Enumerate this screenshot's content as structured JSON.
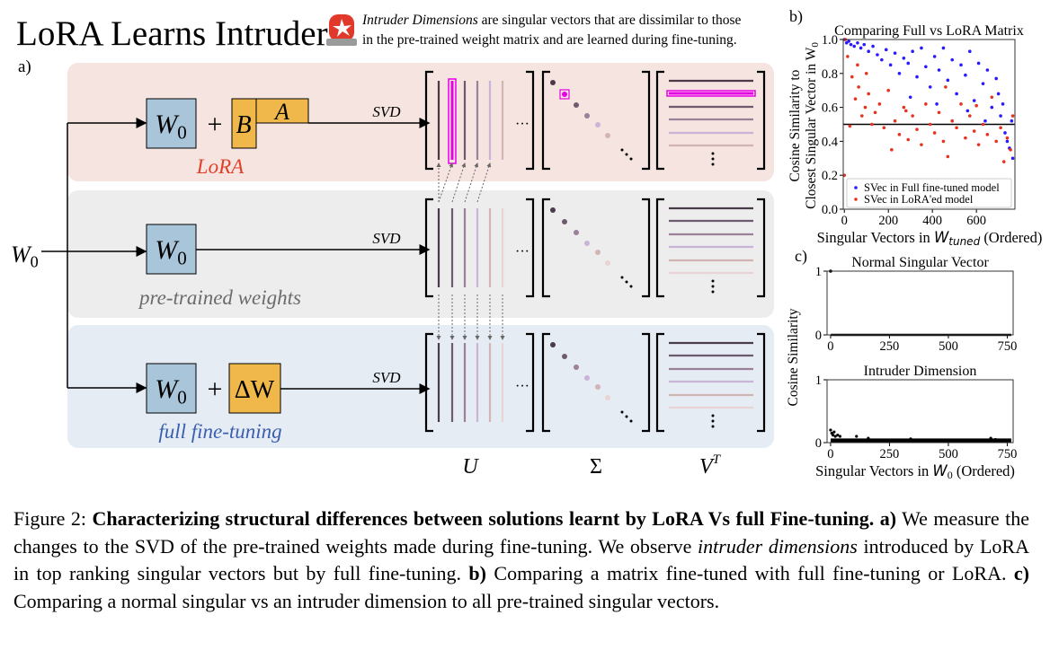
{
  "header": {
    "title": "LoRA Learns Intruders",
    "icon": "alarm-siren-icon",
    "note_italic": "Intruder Dimensions",
    "note_line1_rest": " are singular vectors that are dissimilar to those",
    "note_line2": "in the pre-trained weight matrix and are learned during fine-tuning."
  },
  "panel_a": {
    "label": "a)",
    "input_label": "W",
    "input_sub": "0",
    "rows": [
      {
        "name": "LoRA",
        "caption": "LoRA",
        "bg": "#f5e4e0",
        "caption_color": "#e0402a",
        "terms": [
          "B",
          "A"
        ],
        "svd": "SVD"
      },
      {
        "name": "pre-trained weights",
        "caption": "pre-trained weights",
        "bg": "#ededed",
        "caption_color": "#6b6b6b",
        "terms": [],
        "svd": "SVD"
      },
      {
        "name": "full fine-tuning",
        "caption": "full fine-tuning",
        "bg": "#e6ecf4",
        "caption_color": "#3a5fb0",
        "terms": [
          "ΔW"
        ],
        "svd": "SVD"
      }
    ],
    "w0_label": "W",
    "w0_sub": "0",
    "plus": "+",
    "matrix_labels": {
      "u": "U",
      "sigma": "Σ",
      "v": "V",
      "v_sup": "T"
    },
    "colors": {
      "w0_box": "#a9c5d9",
      "update_box": "#f0b84a",
      "intruder": "#e600e6",
      "shades": [
        "#4a3a4a",
        "#6e5a6e",
        "#9a8099",
        "#c9b3d6",
        "#d2b4b4",
        "#e8d4d4"
      ]
    }
  },
  "chart_data": [
    {
      "panel": "b)",
      "type": "scatter",
      "title": "Comparing Full vs LoRA Matrix",
      "ylabel_line1": "Cosine Similarity to",
      "ylabel_line2": "Closest Singular Vector in W",
      "ylabel_sub": "0",
      "xlabel_pre": "Singular Vectors in ",
      "xlabel_var": "W",
      "xlabel_sub": "tuned",
      "xlabel_post": " (Ordered)",
      "xlim": [
        -5,
        775
      ],
      "ylim": [
        0.0,
        1.0
      ],
      "xticks": [
        "0",
        "200",
        "400",
        "600"
      ],
      "yticks": [
        "0.0",
        "0.2",
        "0.4",
        "0.6",
        "0.8",
        "1.0"
      ],
      "hline": 0.5,
      "legend_position": "lower-left",
      "series": [
        {
          "name": "SVec in Full fine-tuned model",
          "color": "#2a1aff",
          "points": [
            [
              0,
              1.0
            ],
            [
              10,
              0.98
            ],
            [
              20,
              0.99
            ],
            [
              30,
              0.97
            ],
            [
              45,
              0.96
            ],
            [
              60,
              0.98
            ],
            [
              75,
              0.95
            ],
            [
              90,
              0.97
            ],
            [
              110,
              0.93
            ],
            [
              130,
              0.96
            ],
            [
              150,
              0.91
            ],
            [
              170,
              0.88
            ],
            [
              190,
              0.94
            ],
            [
              210,
              0.85
            ],
            [
              230,
              0.92
            ],
            [
              250,
              0.8
            ],
            [
              270,
              0.89
            ],
            [
              290,
              0.86
            ],
            [
              310,
              0.93
            ],
            [
              330,
              0.78
            ],
            [
              350,
              0.95
            ],
            [
              370,
              0.84
            ],
            [
              390,
              0.72
            ],
            [
              410,
              0.9
            ],
            [
              430,
              0.82
            ],
            [
              450,
              0.95
            ],
            [
              470,
              0.76
            ],
            [
              490,
              0.88
            ],
            [
              510,
              0.68
            ],
            [
              530,
              0.85
            ],
            [
              550,
              0.79
            ],
            [
              570,
              0.93
            ],
            [
              590,
              0.64
            ],
            [
              610,
              0.86
            ],
            [
              630,
              0.74
            ],
            [
              650,
              0.82
            ],
            [
              670,
              0.6
            ],
            [
              690,
              0.77
            ],
            [
              700,
              0.68
            ],
            [
              710,
              0.55
            ],
            [
              720,
              0.62
            ],
            [
              730,
              0.45
            ],
            [
              740,
              0.4
            ],
            [
              750,
              0.36
            ],
            [
              760,
              0.52
            ],
            [
              765,
              0.3
            ],
            [
              300,
              0.66
            ],
            [
              420,
              0.62
            ],
            [
              560,
              0.58
            ],
            [
              640,
              0.52
            ]
          ]
        },
        {
          "name": "SVec in LoRA'ed model",
          "color": "#e8321e",
          "points": [
            [
              0,
              0.2
            ],
            [
              5,
              1.0
            ],
            [
              15,
              0.9
            ],
            [
              25,
              0.49
            ],
            [
              35,
              0.78
            ],
            [
              50,
              0.65
            ],
            [
              65,
              0.72
            ],
            [
              80,
              0.55
            ],
            [
              95,
              0.6
            ],
            [
              110,
              0.68
            ],
            [
              125,
              0.5
            ],
            [
              140,
              0.57
            ],
            [
              160,
              0.62
            ],
            [
              180,
              0.48
            ],
            [
              200,
              0.7
            ],
            [
              215,
              0.35
            ],
            [
              230,
              0.52
            ],
            [
              250,
              0.44
            ],
            [
              270,
              0.6
            ],
            [
              290,
              0.41
            ],
            [
              310,
              0.55
            ],
            [
              330,
              0.47
            ],
            [
              350,
              0.38
            ],
            [
              370,
              0.62
            ],
            [
              390,
              0.5
            ],
            [
              410,
              0.45
            ],
            [
              430,
              0.57
            ],
            [
              450,
              0.4
            ],
            [
              470,
              0.31
            ],
            [
              490,
              0.52
            ],
            [
              510,
              0.48
            ],
            [
              530,
              0.62
            ],
            [
              550,
              0.42
            ],
            [
              570,
              0.55
            ],
            [
              590,
              0.46
            ],
            [
              610,
              0.38
            ],
            [
              630,
              0.5
            ],
            [
              650,
              0.44
            ],
            [
              670,
              0.66
            ],
            [
              690,
              0.4
            ],
            [
              710,
              0.48
            ],
            [
              725,
              0.28
            ],
            [
              740,
              0.42
            ],
            [
              755,
              0.35
            ],
            [
              765,
              0.55
            ],
            [
              100,
              0.8
            ],
            [
              60,
              0.85
            ],
            [
              280,
              0.58
            ],
            [
              460,
              0.72
            ],
            [
              600,
              0.61
            ]
          ]
        }
      ]
    },
    {
      "panel": "c)",
      "type": "scatter",
      "title": "Normal Singular Vector",
      "xlim": [
        -15,
        775
      ],
      "ylim": [
        0,
        1
      ],
      "xticks": [
        "0",
        "250",
        "500",
        "750"
      ],
      "yticks": [
        "0",
        "1"
      ],
      "color": "#000000",
      "points": [
        [
          0,
          1.0
        ]
      ],
      "baseline_value": 0,
      "baseline_range": [
        1,
        767
      ]
    },
    {
      "type": "scatter",
      "title": "Intruder Dimension",
      "xlim": [
        -15,
        775
      ],
      "ylim": [
        0,
        1
      ],
      "xticks": [
        "0",
        "250",
        "500",
        "750"
      ],
      "yticks": [
        "0",
        "1"
      ],
      "color": "#000000",
      "points": [
        [
          0,
          0.2
        ],
        [
          5,
          0.15
        ],
        [
          10,
          0.12
        ],
        [
          15,
          0.17
        ],
        [
          20,
          0.1
        ],
        [
          30,
          0.12
        ],
        [
          40,
          0.1
        ],
        [
          110,
          0.1
        ],
        [
          160,
          0.07
        ],
        [
          340,
          0.06
        ],
        [
          680,
          0.07
        ],
        [
          700,
          0.05
        ]
      ],
      "baseline_value": 0.03,
      "baseline_range": [
        0,
        767
      ],
      "ylabel": "Cosine Similarity",
      "xlabel_pre": "Singular Vectors in ",
      "xlabel_var": "W",
      "xlabel_sub": "0",
      "xlabel_post": " (Ordered)"
    }
  ],
  "caption": {
    "fig": "Figure 2: ",
    "bold_title": "Characterizing structural differences between solutions learnt by LoRA Vs full Fine-tuning.",
    "a_label": " a)",
    "a_text": " We measure the changes to the SVD of the pre-trained weights made during fine-tuning. We observe ",
    "a_italic": "intruder dimensions",
    "a_text2": " introduced by LoRA in top ranking singular vectors but by full fine-tuning. ",
    "b_label": "b)",
    "b_text": " Comparing a matrix fine-tuned with full fine-tuning or LoRA. ",
    "c_label": "c)",
    "c_text": " Comparing a normal singular vs an intruder dimension to all pre-trained singular vectors."
  }
}
